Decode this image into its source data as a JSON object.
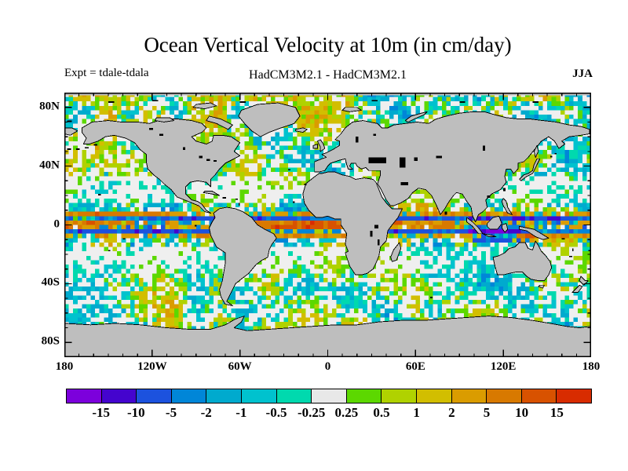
{
  "header": {
    "title": "Ocean Vertical Velocity at 10m (in cm/day)",
    "experiment": "Expt = tdale-tdala",
    "model_comparison": "HadCM3M2.1 - HadCM3M2.1",
    "season": "JJA"
  },
  "map": {
    "land_color": "#BEBEBE",
    "coast_color": "#000000",
    "ocean_neutral_color": "#EFEFEF",
    "frame_color": "#000000",
    "y_ticks": [
      {
        "label": "80N",
        "lat": 80
      },
      {
        "label": "40N",
        "lat": 40
      },
      {
        "label": "0",
        "lat": 0
      },
      {
        "label": "40S",
        "lat": -40
      },
      {
        "label": "80S",
        "lat": -80
      }
    ],
    "x_ticks": [
      {
        "label": "180",
        "lon": -180
      },
      {
        "label": "120W",
        "lon": -120
      },
      {
        "label": "60W",
        "lon": -60
      },
      {
        "label": "0",
        "lon": 0
      },
      {
        "label": "60E",
        "lon": 60
      },
      {
        "label": "120E",
        "lon": 120
      },
      {
        "label": "180",
        "lon": 180
      }
    ]
  },
  "colorbar": {
    "levels": [
      -15,
      -10,
      -5,
      -2,
      -1,
      -0.5,
      -0.25,
      0.25,
      0.5,
      1,
      2,
      5,
      10,
      15
    ],
    "level_labels": [
      "-15",
      "-10",
      "-5",
      "-2",
      "-1",
      "-0.5",
      "-0.25",
      "0.25",
      "0.5",
      "1",
      "2",
      "5",
      "10",
      "15"
    ],
    "colors": [
      "#7C00DC",
      "#4404CE",
      "#1C52DE",
      "#0086D8",
      "#00AACE",
      "#00C2CE",
      "#00D9AE",
      "#E8E8E8",
      "#5CD800",
      "#B0D200",
      "#D2BE00",
      "#DA9C00",
      "#D87900",
      "#D85200",
      "#D82C00"
    ]
  },
  "chart_data": {
    "type": "heatmap",
    "title": "Ocean Vertical Velocity at 10m (in cm/day)",
    "subtitle": "HadCM3M2.1 - HadCM3M2.1",
    "experiment": "Expt = tdale-tdala",
    "season": "JJA",
    "units": "cm/day",
    "xlim": [
      -180,
      180
    ],
    "ylim": [
      -90,
      90
    ],
    "x_tick_labels": [
      "180",
      "120W",
      "60W",
      "0",
      "60E",
      "120E",
      "180"
    ],
    "y_tick_labels": [
      "80N",
      "40N",
      "0",
      "40S",
      "80S"
    ],
    "color_levels": [
      -15,
      -10,
      -5,
      -2,
      -1,
      -0.5,
      -0.25,
      0.25,
      0.5,
      1,
      2,
      5,
      10,
      15
    ],
    "palette": [
      "#7C00DC",
      "#4404CE",
      "#1C52DE",
      "#0086D8",
      "#00AACE",
      "#00C2CE",
      "#00D9AE",
      "#E8E8E8",
      "#5CD800",
      "#B0D200",
      "#D2BE00",
      "#DA9C00",
      "#D87900",
      "#D85200",
      "#D82C00"
    ],
    "land_color": "#BEBEBE",
    "legend_position": "bottom",
    "grid": false
  }
}
